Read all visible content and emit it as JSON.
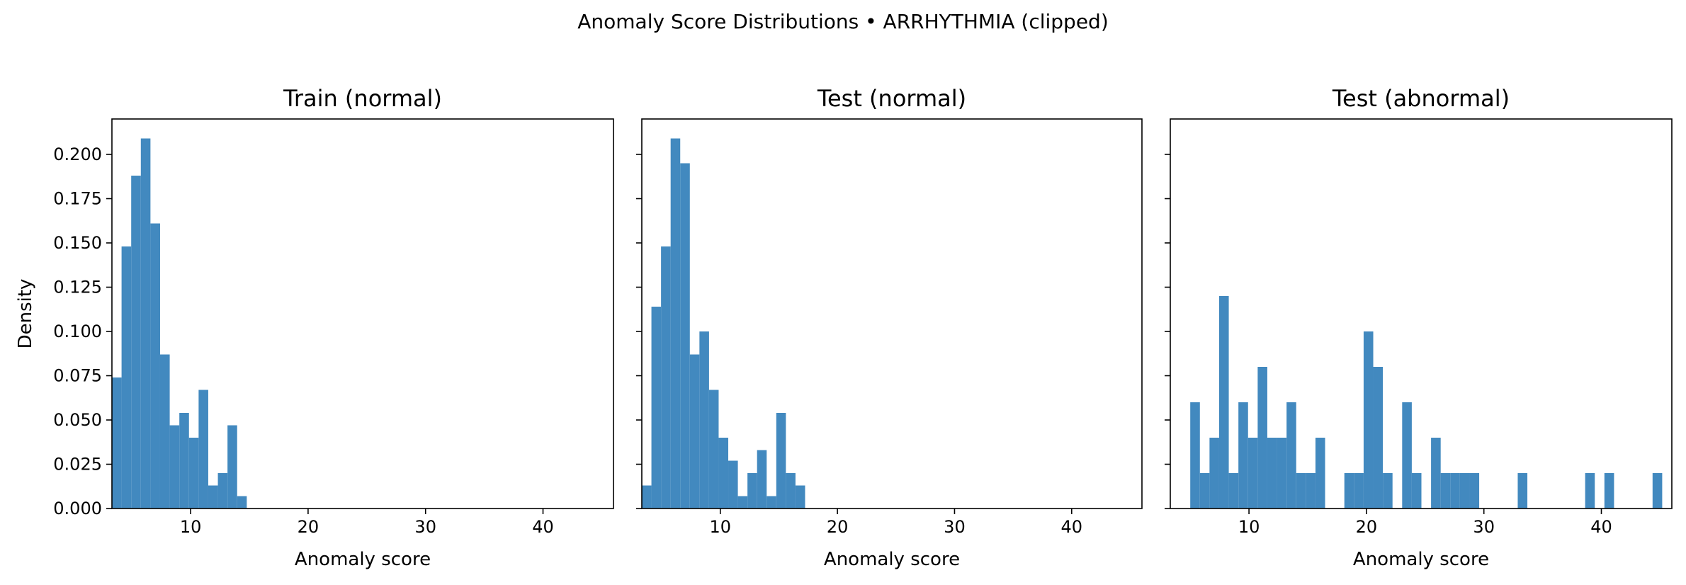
{
  "suptitle": "Anomaly Score Distributions • ARRHYTHMIA (clipped)",
  "bar_color": "#4289bf",
  "chart_data": [
    {
      "type": "bar",
      "title": "Train (normal)",
      "xlabel": "Anomaly score",
      "ylabel": "Density",
      "xlim": [
        3.3,
        46.0
      ],
      "ylim": [
        0,
        0.22
      ],
      "xticks": [
        10,
        20,
        30,
        40
      ],
      "yticks": [
        0.0,
        0.025,
        0.05,
        0.075,
        0.1,
        0.125,
        0.15,
        0.175,
        0.2
      ],
      "bin_width": 0.82,
      "bin_start": 3.3,
      "values": [
        0.074,
        0.148,
        0.188,
        0.209,
        0.161,
        0.087,
        0.047,
        0.054,
        0.04,
        0.067,
        0.013,
        0.02,
        0.047,
        0.007
      ]
    },
    {
      "type": "bar",
      "title": "Test (normal)",
      "xlabel": "Anomaly score",
      "ylabel": "",
      "xlim": [
        3.3,
        46.0
      ],
      "ylim": [
        0,
        0.22
      ],
      "xticks": [
        10,
        20,
        30,
        40
      ],
      "yticks": [
        0.0,
        0.025,
        0.05,
        0.075,
        0.1,
        0.125,
        0.15,
        0.175,
        0.2
      ],
      "bin_width": 0.82,
      "bin_start": 3.3,
      "values": [
        0.013,
        0.114,
        0.148,
        0.209,
        0.195,
        0.087,
        0.1,
        0.067,
        0.04,
        0.027,
        0.007,
        0.02,
        0.033,
        0.007,
        0.054,
        0.02,
        0.013
      ]
    },
    {
      "type": "bar",
      "title": "Test (abnormal)",
      "xlabel": "Anomaly score",
      "ylabel": "",
      "xlim": [
        3.3,
        46.0
      ],
      "ylim": [
        0,
        0.22
      ],
      "xticks": [
        10,
        20,
        30,
        40
      ],
      "yticks": [
        0.0,
        0.025,
        0.05,
        0.075,
        0.1,
        0.125,
        0.15,
        0.175,
        0.2
      ],
      "bin_width": 0.82,
      "bin_start": 5.0,
      "values": [
        0.06,
        0.02,
        0.04,
        0.12,
        0.02,
        0.06,
        0.04,
        0.08,
        0.04,
        0.04,
        0.06,
        0.02,
        0.02,
        0.04,
        0,
        0,
        0.02,
        0.02,
        0.1,
        0.08,
        0.02,
        0,
        0.06,
        0.02,
        0,
        0.04,
        0.02,
        0.02,
        0.02,
        0.02,
        0,
        0,
        0,
        0,
        0.02,
        0,
        0,
        0,
        0,
        0,
        0,
        0.02,
        0,
        0.02,
        0,
        0,
        0,
        0,
        0.02
      ]
    }
  ]
}
